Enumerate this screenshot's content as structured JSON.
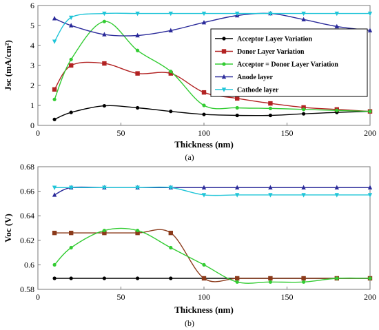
{
  "colors": {
    "acceptor": "#000000",
    "donor": "#b22222",
    "equal": "#33cc33",
    "equal_bottom": "#8b3a1a",
    "anode": "#2a2a9a",
    "cathode": "#20c5d8"
  },
  "chart_data": [
    {
      "type": "line",
      "panel_label": "(a)",
      "xlabel": "Thickness (nm)",
      "ylabel": "Jsc (mA/cm²)",
      "xlim": [
        0,
        200
      ],
      "ylim": [
        0,
        6
      ],
      "xticks": [
        "0",
        "50",
        "100",
        "150",
        "200"
      ],
      "yticks": [
        "0",
        "1",
        "2",
        "3",
        "4",
        "5",
        "6"
      ],
      "legend_position": "right",
      "series": [
        {
          "name": "Acceptor Layer Variation",
          "marker": "circle",
          "color": "#000000",
          "x": [
            10,
            20,
            40,
            60,
            80,
            100,
            120,
            140,
            160,
            180,
            200
          ],
          "y": [
            0.3,
            0.65,
            0.98,
            0.88,
            0.7,
            0.55,
            0.5,
            0.5,
            0.58,
            0.65,
            0.7
          ]
        },
        {
          "name": "Donor Layer Variation",
          "marker": "square",
          "color": "#b22222",
          "x": [
            10,
            20,
            40,
            60,
            80,
            100,
            120,
            140,
            160,
            180,
            200
          ],
          "y": [
            1.8,
            3.0,
            3.1,
            2.6,
            2.6,
            1.65,
            1.35,
            1.1,
            0.9,
            0.8,
            0.7
          ]
        },
        {
          "name": "Acceptor =  Donor Layer Variation",
          "marker": "circle",
          "color": "#33cc33",
          "x": [
            10,
            20,
            40,
            60,
            80,
            100,
            120,
            140,
            160,
            180,
            200
          ],
          "y": [
            1.3,
            3.3,
            5.2,
            3.75,
            2.7,
            1.0,
            0.88,
            0.85,
            0.8,
            0.75,
            0.7
          ]
        },
        {
          "name": "Anode layer",
          "marker": "triangle-up",
          "color": "#2a2a9a",
          "x": [
            10,
            20,
            40,
            60,
            80,
            100,
            120,
            140,
            160,
            180,
            200
          ],
          "y": [
            5.35,
            5.0,
            4.55,
            4.5,
            4.75,
            5.15,
            5.5,
            5.6,
            5.3,
            4.95,
            4.75
          ]
        },
        {
          "name": "Cathode layer",
          "marker": "triangle-down",
          "color": "#20c5d8",
          "x": [
            10,
            20,
            40,
            60,
            80,
            100,
            120,
            140,
            160,
            180,
            200
          ],
          "y": [
            4.2,
            5.4,
            5.6,
            5.6,
            5.6,
            5.6,
            5.6,
            5.6,
            5.6,
            5.6,
            5.6
          ]
        }
      ]
    },
    {
      "type": "line",
      "panel_label": "(b)",
      "xlabel": "Thickness (nm)",
      "ylabel": "Voc (V)",
      "xlim": [
        0,
        200
      ],
      "ylim": [
        0.58,
        0.68
      ],
      "xticks": [
        "0",
        "50",
        "100",
        "150",
        "200"
      ],
      "yticks": [
        "0.58",
        "0.6",
        "0.62",
        "0.64",
        "0.66",
        "0.68"
      ],
      "series": [
        {
          "marker": "circle",
          "color": "#000000",
          "x": [
            10,
            20,
            40,
            60,
            80,
            100,
            120,
            140,
            160,
            180,
            200
          ],
          "y": [
            0.589,
            0.589,
            0.589,
            0.589,
            0.589,
            0.589,
            0.589,
            0.589,
            0.589,
            0.589,
            0.589
          ]
        },
        {
          "marker": "square",
          "color": "#8b3a1a",
          "x": [
            10,
            20,
            40,
            60,
            80,
            100,
            120,
            140,
            160,
            180,
            200
          ],
          "y": [
            0.626,
            0.626,
            0.626,
            0.626,
            0.626,
            0.589,
            0.589,
            0.589,
            0.589,
            0.589,
            0.589
          ]
        },
        {
          "marker": "circle",
          "color": "#33cc33",
          "x": [
            10,
            20,
            40,
            60,
            80,
            100,
            120,
            140,
            160,
            180,
            200
          ],
          "y": [
            0.6,
            0.614,
            0.628,
            0.628,
            0.614,
            0.6,
            0.586,
            0.586,
            0.586,
            0.589,
            0.589
          ]
        },
        {
          "marker": "triangle-up",
          "color": "#2a2a9a",
          "x": [
            10,
            20,
            40,
            60,
            80,
            100,
            120,
            140,
            160,
            180,
            200
          ],
          "y": [
            0.657,
            0.663,
            0.663,
            0.663,
            0.663,
            0.663,
            0.663,
            0.663,
            0.663,
            0.663,
            0.663
          ]
        },
        {
          "marker": "triangle-down",
          "color": "#20c5d8",
          "x": [
            10,
            20,
            40,
            60,
            80,
            100,
            120,
            140,
            160,
            180,
            200
          ],
          "y": [
            0.663,
            0.663,
            0.663,
            0.663,
            0.663,
            0.657,
            0.657,
            0.657,
            0.657,
            0.657,
            0.657
          ]
        }
      ]
    }
  ]
}
